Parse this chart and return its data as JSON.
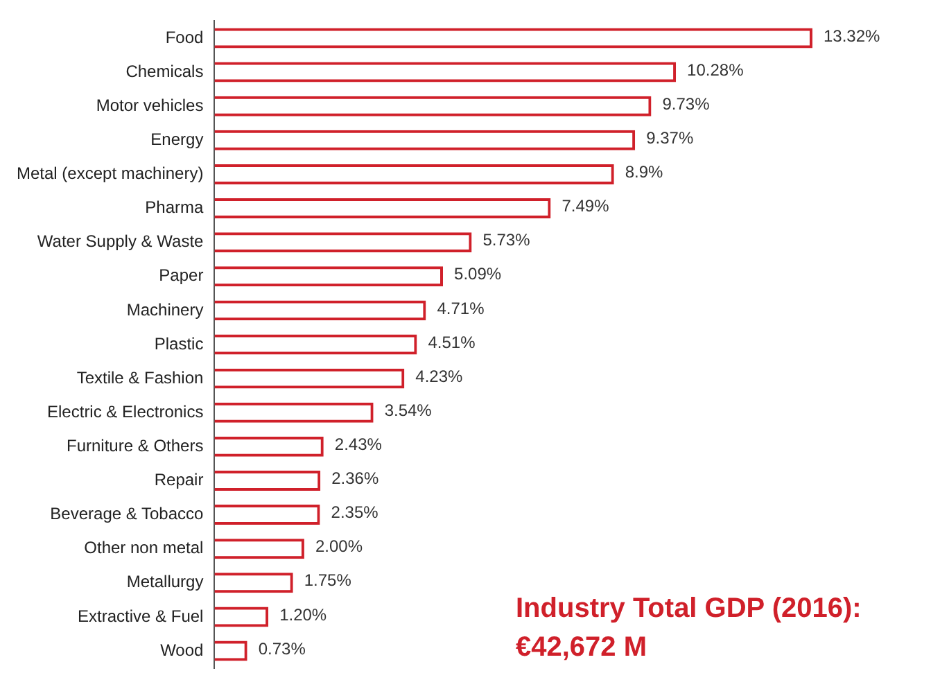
{
  "chart_data": {
    "type": "bar",
    "orientation": "horizontal",
    "tick_labels": "y",
    "grid": false,
    "legend": false,
    "categories": [
      "Food",
      "Chemicals",
      "Motor vehicles",
      "Energy",
      "Metal (except machinery)",
      "Pharma",
      "Water Supply & Waste",
      "Paper",
      "Machinery",
      "Plastic",
      "Textile & Fashion",
      "Electric & Electronics",
      "Furniture & Others",
      "Repair",
      "Beverage & Tobacco",
      "Other non metal",
      "Metallurgy",
      "Extractive & Fuel",
      "Wood"
    ],
    "values": [
      13.32,
      10.28,
      9.73,
      9.37,
      8.9,
      7.49,
      5.73,
      5.09,
      4.71,
      4.51,
      4.23,
      3.54,
      2.43,
      2.36,
      2.35,
      2.0,
      1.75,
      1.2,
      0.73
    ],
    "value_labels": [
      "13.32%",
      "10.28%",
      "9.73%",
      "9.37%",
      "8.9%",
      "7.49%",
      "5.73%",
      "5.09%",
      "4.71%",
      "4.51%",
      "4.23%",
      "3.54%",
      "2.43%",
      "2.36%",
      "2.35%",
      "2.00%",
      "1.75%",
      "1.20%",
      "0.73%"
    ],
    "color": "#d0202a",
    "annotations": [
      "Industry Total GDP (2016):\n€42,672 M"
    ]
  }
}
